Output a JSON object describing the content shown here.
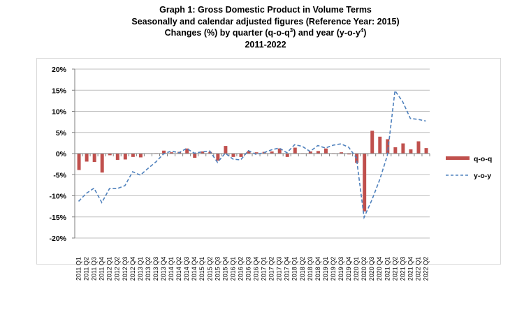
{
  "title": {
    "line1": "Graph 1: Gross Domestic Product in Volume Terms",
    "line2": "Seasonally and calendar adjusted figures (Reference Year: 2015)",
    "line3_a": "Changes (%) by quarter (q-o-q",
    "line3_sup_a": "3",
    "line3_b": ") and year (y-o-y",
    "line3_sup_b": "4",
    "line3_c": ")",
    "line4": "2011-2022"
  },
  "colors": {
    "qoq": "#c0504d",
    "yoy": "#4f81bd",
    "grid": "#bfbfbf",
    "axis": "#7f7f7f"
  },
  "chart_data": {
    "type": "bar",
    "y_tick_labels": [
      "20%",
      "15%",
      "10%",
      "5%",
      "0%",
      "-5%",
      "-10%",
      "-15%",
      "-20%"
    ],
    "ylim": [
      -20,
      20
    ],
    "y_step": 5,
    "grid": true,
    "legend_position": "right",
    "categories": [
      "2011 Q1",
      "2011 Q2",
      "2011 Q3",
      "2011 Q4",
      "2012 Q1",
      "2012 Q2",
      "2012 Q3",
      "2012 Q4",
      "2013 Q1",
      "2013 Q2",
      "2013 Q3",
      "2013 Q4",
      "2014 Q1",
      "2014 Q2",
      "2014 Q3",
      "2014 Q4",
      "2015 Q1",
      "2015 Q2",
      "2015 Q3",
      "2015 Q4",
      "2016 Q1",
      "2016 Q2",
      "2016 Q3",
      "2016 Q4",
      "2017 Q1",
      "2017 Q2",
      "2017 Q3",
      "2017 Q4",
      "2018 Q1",
      "2018 Q2",
      "2018 Q3",
      "2018 Q4",
      "2019 Q1",
      "2019 Q2",
      "2019 Q3",
      "2019 Q4",
      "2020 Q1",
      "2020 Q2",
      "2020 Q3",
      "2020 Q4",
      "2021 Q1",
      "2021 Q2",
      "2021 Q3",
      "2021 Q4",
      "2022 Q1",
      "2022 Q2"
    ],
    "series": [
      {
        "name": "q-o-q",
        "type": "bar",
        "values": [
          -3.9,
          -1.9,
          -2.0,
          -4.5,
          -0.4,
          -1.5,
          -1.4,
          -0.8,
          -0.9,
          0.0,
          0.1,
          0.7,
          0.3,
          0.4,
          1.2,
          -1.0,
          0.5,
          0.4,
          -1.7,
          1.8,
          -0.8,
          -0.8,
          0.6,
          0.3,
          0.4,
          0.5,
          1.2,
          -0.8,
          1.4,
          0.1,
          0.5,
          0.6,
          1.2,
          0.1,
          0.3,
          -0.2,
          -2.2,
          -13.7,
          5.4,
          4.0,
          3.4,
          1.5,
          2.4,
          1.0,
          2.9,
          1.3
        ]
      },
      {
        "name": "y-o-y",
        "type": "line",
        "values": [
          -11.3,
          -9.4,
          -8.2,
          -11.6,
          -8.3,
          -8.3,
          -7.6,
          -4.3,
          -5.1,
          -3.5,
          -2.0,
          -0.1,
          0.6,
          0.2,
          1.2,
          0.1,
          0.4,
          0.6,
          -2.1,
          0.1,
          -1.3,
          -1.5,
          0.7,
          -0.2,
          0.2,
          0.9,
          1.3,
          0.2,
          2.1,
          1.7,
          0.5,
          1.9,
          1.3,
          2.0,
          2.3,
          1.5,
          -1.0,
          -15.1,
          -11.0,
          -6.3,
          -0.5,
          14.9,
          12.3,
          8.3,
          8.1,
          7.7
        ]
      }
    ]
  }
}
